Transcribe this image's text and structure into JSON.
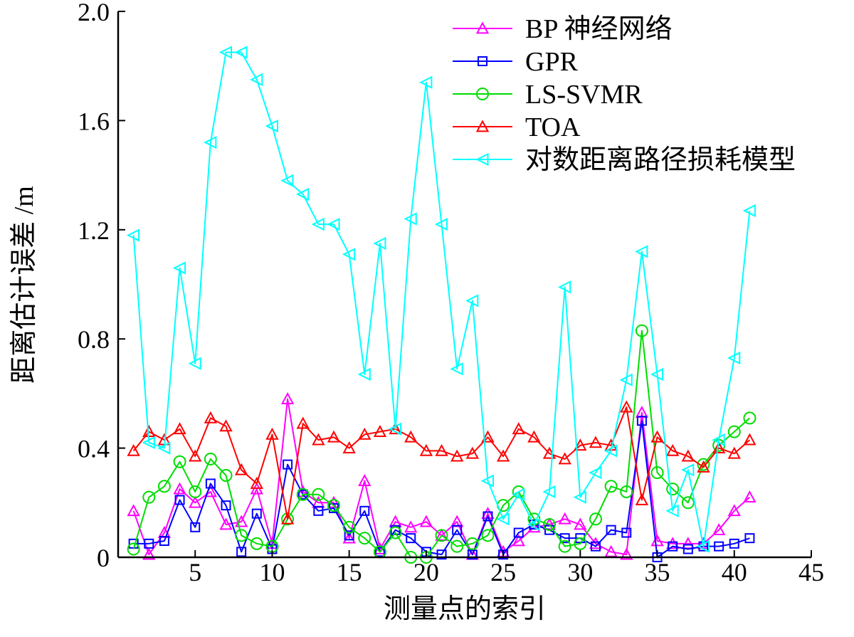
{
  "chart_data": {
    "type": "line",
    "title": "",
    "xlabel": "测量点的索引",
    "ylabel": "距离估计误差 /m",
    "xlim": [
      0,
      45
    ],
    "ylim": [
      0,
      2.0
    ],
    "xticks": [
      5,
      10,
      15,
      20,
      25,
      30,
      35,
      40,
      45
    ],
    "xtick_labels": [
      "5",
      "10",
      "15",
      "20",
      "25",
      "30",
      "35",
      "40",
      "45"
    ],
    "yticks": [
      0,
      0.4,
      0.8,
      1.2,
      1.6,
      2.0
    ],
    "ytick_labels": [
      "0",
      "0.4",
      "0.8",
      "1.2",
      "1.6",
      "2.0"
    ],
    "grid": false,
    "legend_position": "top-right",
    "x": [
      1,
      2,
      3,
      4,
      5,
      6,
      7,
      8,
      9,
      10,
      11,
      12,
      13,
      14,
      15,
      16,
      17,
      18,
      19,
      20,
      21,
      22,
      23,
      24,
      25,
      26,
      27,
      28,
      29,
      30,
      31,
      32,
      33,
      34,
      35,
      36,
      37,
      38,
      39,
      40,
      41
    ],
    "series": [
      {
        "name": "BP 神经网络",
        "color": "#ff00ff",
        "marker": "triangle-up",
        "values": [
          0.17,
          0.01,
          0.09,
          0.25,
          0.2,
          0.24,
          0.12,
          0.13,
          0.25,
          0.05,
          0.58,
          0.24,
          0.2,
          0.2,
          0.07,
          0.28,
          0.03,
          0.13,
          0.11,
          0.13,
          0.08,
          0.13,
          0.01,
          0.16,
          0.02,
          0.06,
          0.11,
          0.12,
          0.14,
          0.12,
          0.05,
          0.02,
          0.01,
          0.53,
          0.06,
          0.05,
          0.05,
          0.05,
          0.1,
          0.17,
          0.22
        ]
      },
      {
        "name": "GPR",
        "color": "#0000ff",
        "marker": "square",
        "values": [
          0.05,
          0.05,
          0.06,
          0.21,
          0.11,
          0.27,
          0.19,
          0.02,
          0.16,
          0.03,
          0.34,
          0.23,
          0.17,
          0.18,
          0.08,
          0.17,
          0.02,
          0.1,
          0.07,
          0.02,
          0.01,
          0.1,
          0.01,
          0.15,
          0.01,
          0.09,
          0.12,
          0.1,
          0.07,
          0.07,
          0.04,
          0.1,
          0.09,
          0.5,
          0.0,
          0.04,
          0.03,
          0.04,
          0.04,
          0.05,
          0.07
        ]
      },
      {
        "name": "LS-SVMR",
        "color": "#00dd00",
        "marker": "circle",
        "values": [
          0.03,
          0.22,
          0.26,
          0.35,
          0.24,
          0.36,
          0.3,
          0.08,
          0.05,
          0.04,
          0.14,
          0.23,
          0.23,
          0.19,
          0.11,
          0.07,
          0.02,
          0.09,
          0.0,
          0.0,
          0.08,
          0.04,
          0.05,
          0.08,
          0.19,
          0.24,
          0.14,
          0.12,
          0.04,
          0.05,
          0.14,
          0.26,
          0.24,
          0.83,
          0.31,
          0.25,
          0.2,
          0.34,
          0.41,
          0.46,
          0.51
        ]
      },
      {
        "name": "TOA",
        "color": "#ff0000",
        "marker": "triangle-up",
        "values": [
          0.39,
          0.46,
          0.43,
          0.47,
          0.37,
          0.51,
          0.48,
          0.32,
          0.27,
          0.45,
          0.14,
          0.49,
          0.43,
          0.44,
          0.4,
          0.45,
          0.46,
          0.47,
          0.44,
          0.39,
          0.39,
          0.37,
          0.38,
          0.44,
          0.37,
          0.47,
          0.44,
          0.38,
          0.36,
          0.41,
          0.42,
          0.41,
          0.55,
          0.21,
          0.44,
          0.39,
          0.37,
          0.33,
          0.4,
          0.38,
          0.43
        ]
      },
      {
        "name": "对数距离路径损耗模型",
        "color": "#00ffff",
        "marker": "triangle-left",
        "values": [
          1.18,
          0.42,
          0.4,
          1.06,
          0.71,
          1.52,
          1.85,
          1.85,
          1.75,
          1.58,
          1.38,
          1.33,
          1.22,
          1.22,
          1.11,
          0.67,
          1.15,
          0.47,
          1.24,
          1.74,
          1.22,
          0.69,
          0.94,
          0.28,
          0.14,
          0.23,
          0.12,
          0.24,
          0.99,
          0.22,
          0.31,
          0.39,
          0.65,
          1.12,
          0.67,
          0.17,
          0.32,
          0.04,
          0.43,
          0.73,
          1.27
        ]
      }
    ]
  }
}
